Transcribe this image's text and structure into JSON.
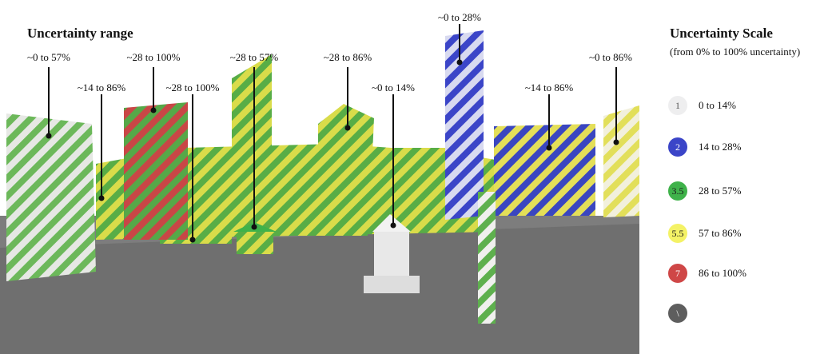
{
  "left_title": "Uncertainty range",
  "callouts": [
    {
      "text": "~0 to 57%"
    },
    {
      "text": "~14 to 86%"
    },
    {
      "text": "~28 to 100%"
    },
    {
      "text": "~28 to 100%"
    },
    {
      "text": "~28 to 57%"
    },
    {
      "text": "~28 to 86%"
    },
    {
      "text": "~0 to 14%"
    },
    {
      "text": "~0 to 28%"
    },
    {
      "text": "~14 to 86%"
    },
    {
      "text": "~0 to 86%"
    }
  ],
  "legend": {
    "title": "Uncertainty Scale",
    "subtitle": "(from 0% to 100% uncertainty)",
    "items": [
      {
        "value": "1",
        "label": "0 to 14%",
        "color": "#eeeeef",
        "text_color": "#555555"
      },
      {
        "value": "2",
        "label": "14 to 28%",
        "color": "#3b45c8",
        "text_color": "#ffffff"
      },
      {
        "value": "3.5",
        "label": "28 to 57%",
        "color": "#3fb24a",
        "text_color": "#1a1a1a"
      },
      {
        "value": "5.5",
        "label": "57 to 86%",
        "color": "#f4f266",
        "text_color": "#1a1a1a"
      },
      {
        "value": "7",
        "label": "86 to 100%",
        "color": "#cf4747",
        "text_color": "#ffffff"
      },
      {
        "value": "\\",
        "label": "",
        "color": "#5e5e5e",
        "text_color": "#ffffff"
      }
    ]
  }
}
